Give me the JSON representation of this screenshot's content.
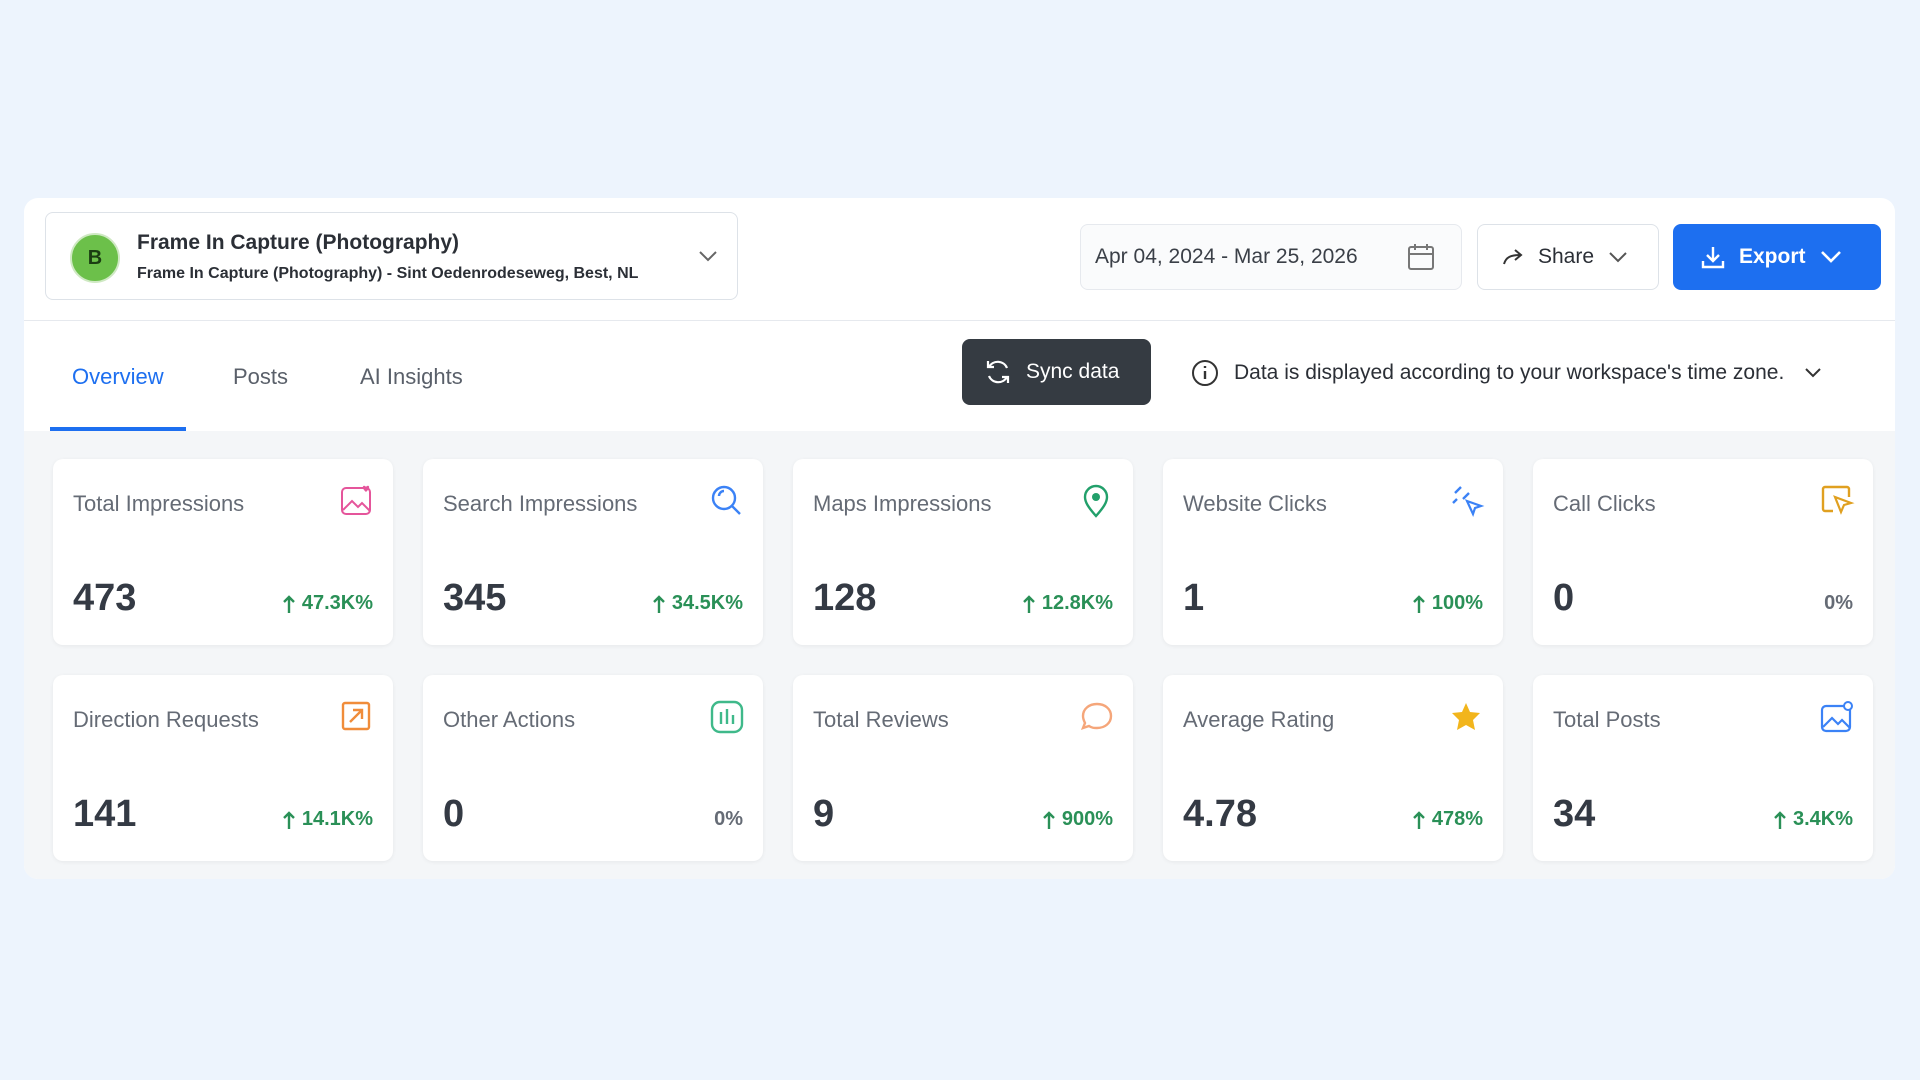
{
  "header": {
    "business": {
      "avatar": "B",
      "name": "Frame In Capture (Photography)",
      "address": "Frame In Capture (Photography) - Sint Oedenrodeseweg, Best, NL"
    },
    "date_range": "Apr 04, 2024 - Mar 25, 2026",
    "share": "Share",
    "export": "Export"
  },
  "tabs": [
    "Overview",
    "Posts",
    "AI Insights"
  ],
  "sync": "Sync data",
  "timezone_note": "Data is displayed according to your workspace's time zone.",
  "cards": [
    {
      "label": "Total Impressions",
      "value": 473,
      "change": "47.3K%"
    },
    {
      "label": "Search Impressions",
      "value": 345,
      "change": "34.5K%"
    },
    {
      "label": "Maps Impressions",
      "value": 128,
      "change": "12.8K%"
    },
    {
      "label": "Website Clicks",
      "value": 1,
      "change": "100%"
    },
    {
      "label": "Call Clicks",
      "value": 0,
      "change": "0%"
    },
    {
      "label": "Direction Requests",
      "value": 141,
      "change": "14.1K%"
    },
    {
      "label": "Other Actions",
      "value": 0,
      "change": "0%"
    },
    {
      "label": "Total Reviews",
      "value": 9,
      "change": "900%"
    },
    {
      "label": "Average Rating",
      "value": 4.78,
      "change": "478%"
    },
    {
      "label": "Total Posts",
      "value": 34,
      "change": "3.4K%"
    }
  ]
}
